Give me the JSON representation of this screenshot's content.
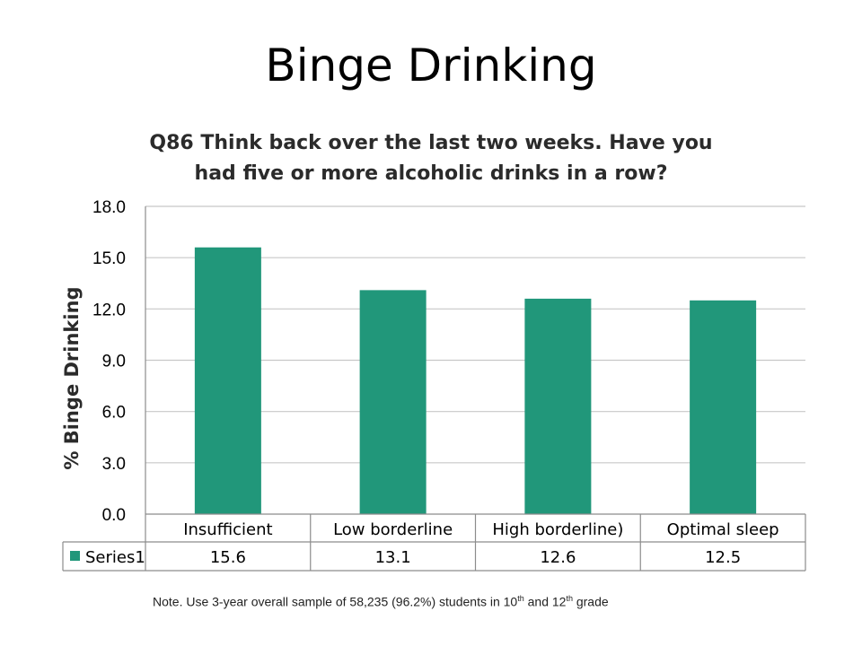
{
  "slide": {
    "title": "Binge Drinking"
  },
  "note": {
    "text": "Note. Use 3-year overall sample of 58,235 (96.2%) students in 10",
    "sup1": "th",
    "mid": " and 12",
    "sup2": "th",
    "end": " grade"
  },
  "chart_data": {
    "type": "bar",
    "title": "Q86 Think back over the last two weeks. Have you had five or more alcoholic drinks in a row?",
    "ylabel": "% Binge Drinking",
    "xlabel": "",
    "categories": [
      "Insufficient",
      "Low borderline",
      "High borderline)",
      "Optimal sleep"
    ],
    "series": [
      {
        "name": "Series1",
        "values": [
          15.6,
          13.1,
          12.6,
          12.5
        ],
        "color": "#21977a"
      }
    ],
    "ylim": [
      0,
      18
    ],
    "yticks": [
      "0.0",
      "3.0",
      "6.0",
      "9.0",
      "12.0",
      "15.0",
      "18.0"
    ],
    "grid": true,
    "data_table": true,
    "colors": {
      "bar": "#21977a",
      "grid": "#c8c8c8",
      "axis": "#8c8c8c"
    }
  }
}
